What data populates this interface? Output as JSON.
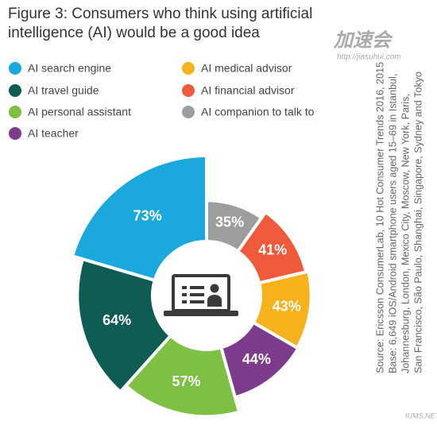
{
  "chart_data": {
    "type": "polar_bar",
    "title": [
      "Figure 3: Consumers who think using artificial",
      "intelligence (AI) would be a good idea"
    ],
    "categories": [
      "AI companion to talk to",
      "AI financial advisor",
      "AI medical advisor",
      "AI teacher",
      "AI personal assistant",
      "AI travel guide",
      "AI search engine"
    ],
    "values": [
      35,
      41,
      43,
      44,
      57,
      64,
      73
    ],
    "value_labels": [
      "35%",
      "41%",
      "43%",
      "44%",
      "57%",
      "64%",
      "73%"
    ],
    "colors": [
      "#9d9d9d",
      "#ef5a3a",
      "#f6b21a",
      "#7c3b8b",
      "#7dc043",
      "#0e5c52",
      "#1ba9dd"
    ],
    "source": [
      "Source: Ericsson ConsumerLab, 10 Hot Consumer Trends 2016, 2015",
      "Base: 6,649 iOS/Android smartphone users aged 15–69 in Istanbul,",
      "Johannesburg, London, Mexico City, Moscow, New York, Paris,",
      "San Francisco, São Paulo, Shanghai, Singapore, Sydney and Tokyo"
    ],
    "watermarks": [
      "加速会",
      "http://jiasuhui.com",
      "IUMS.NET"
    ]
  }
}
